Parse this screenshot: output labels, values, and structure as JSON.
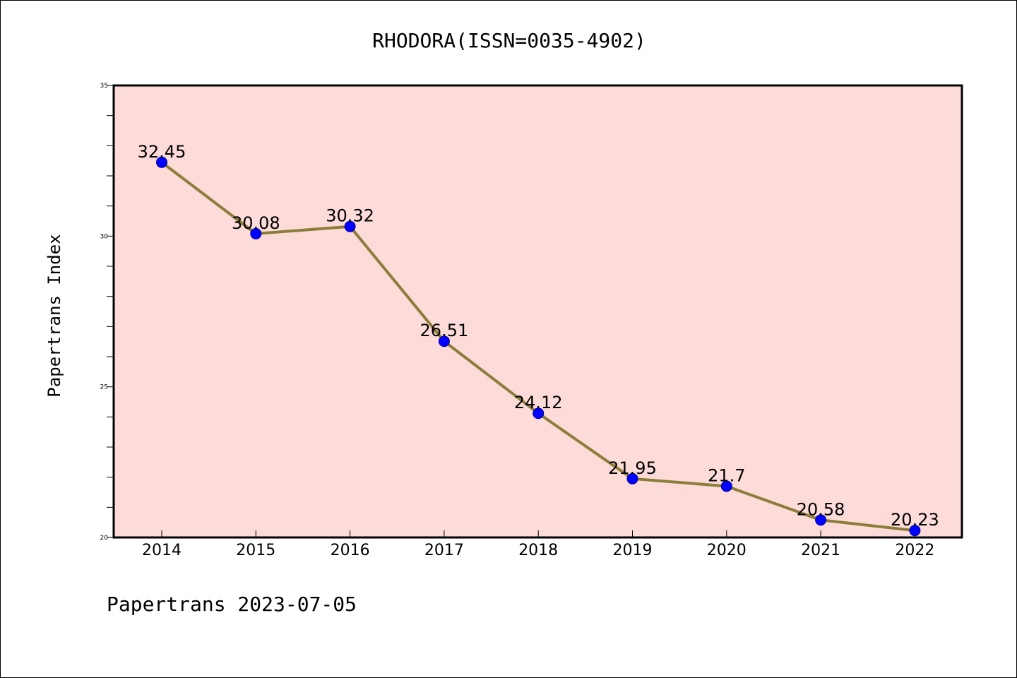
{
  "footer": "Papertrans 2023-07-05",
  "colors": {
    "plot_background": "#fddbd8",
    "line": "#8b7d3a",
    "marker": "#0000ff",
    "marker_edge": "#00008b",
    "axis": "#000000"
  },
  "chart_data": {
    "type": "line",
    "title": "RHODORA(ISSN=0035-4902)",
    "xlabel": "",
    "ylabel": "Papertrans Index",
    "categories": [
      "2014",
      "2015",
      "2016",
      "2017",
      "2018",
      "2019",
      "2020",
      "2021",
      "2022"
    ],
    "series": [
      {
        "values": [
          32.45,
          30.08,
          30.32,
          26.51,
          24.12,
          21.95,
          21.7,
          20.58,
          20.23
        ],
        "value_labels": [
          "32.45",
          "30.08",
          "30.32",
          "26.51",
          "24.12",
          "21.95",
          "21.7",
          "20.58",
          "20.23"
        ]
      }
    ],
    "ylim": [
      20,
      35
    ],
    "yticks": [
      20,
      25,
      30,
      35
    ],
    "ytick_labels": [
      "20",
      "25",
      "30",
      "35"
    ],
    "y_minor_step": 1,
    "grid": false,
    "legend": "none"
  }
}
